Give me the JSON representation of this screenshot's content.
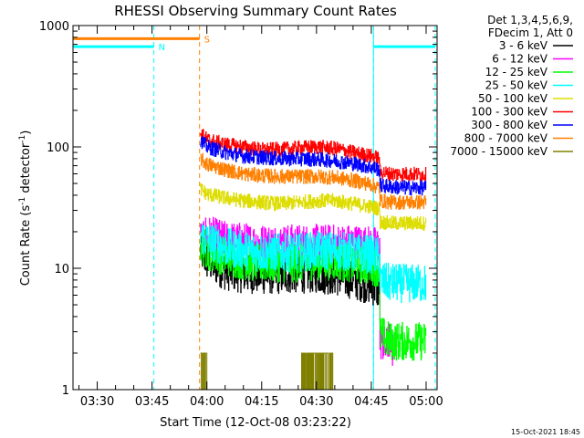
{
  "chart_data": {
    "type": "line",
    "title": "RHESSI Observing Summary Count Rates",
    "xlabel": "Start Time (12-Oct-08 03:23:22)",
    "ylabel": "Count Rate (s⁻¹ detector⁻¹)",
    "ylabel_parts": {
      "a": "Count Rate (s",
      "b": "-1",
      "c": " detector",
      "d": "-1",
      "e": ")"
    },
    "yscale": "log",
    "ylim": [
      1,
      1000
    ],
    "xlim_minutes": [
      203.37,
      303.0
    ],
    "x_ticks": [
      {
        "label": "03:30",
        "m": 210
      },
      {
        "label": "03:45",
        "m": 225
      },
      {
        "label": "04:00",
        "m": 240
      },
      {
        "label": "04:15",
        "m": 255
      },
      {
        "label": "04:30",
        "m": 270
      },
      {
        "label": "04:45",
        "m": 285
      },
      {
        "label": "05:00",
        "m": 300
      }
    ],
    "y_ticks": [
      {
        "label": "1",
        "v": 1
      },
      {
        "label": "10",
        "v": 10
      },
      {
        "label": "100",
        "v": 100
      },
      {
        "label": "1000",
        "v": 1000
      }
    ],
    "legend_header": [
      "Det 1,3,4,5,6,9,",
      "FDecim 1, Att 0"
    ],
    "legend_position": "right",
    "series": [
      {
        "name": "3 - 6 keV",
        "color": "#000000",
        "x": [
          238.2,
          240,
          245,
          250,
          255,
          260,
          265,
          270,
          275,
          280,
          285,
          287.3
        ],
        "y": [
          14,
          11.5,
          9.5,
          9,
          8.8,
          8.8,
          9,
          9,
          8.6,
          8,
          7.2,
          6.5
        ]
      },
      {
        "name": "6 - 12 keV",
        "color": "#ff00ff",
        "x": [
          238.2,
          240,
          245,
          250,
          255,
          260,
          265,
          270,
          275,
          280,
          285,
          287.3,
          288,
          289,
          290,
          291
        ],
        "y": [
          21,
          19,
          17,
          16.5,
          16,
          16,
          16,
          16,
          16,
          16,
          15.5,
          15,
          2.5,
          2.2,
          2.6,
          2.0
        ]
      },
      {
        "name": "12 - 25 keV",
        "color": "#00ff00",
        "x": [
          238.2,
          240,
          245,
          250,
          255,
          260,
          265,
          270,
          275,
          280,
          285,
          287.3,
          287.8,
          290,
          295,
          300
        ],
        "y": [
          16,
          14,
          12.5,
          11.5,
          11,
          11,
          11,
          11.5,
          11.5,
          11,
          10.5,
          10,
          2.8,
          2.5,
          2.5,
          2.5
        ]
      },
      {
        "name": "25 - 50 keV",
        "color": "#00ffff",
        "x": [
          238.2,
          240,
          245,
          250,
          255,
          260,
          265,
          270,
          275,
          280,
          285,
          287.3,
          287.8,
          290,
          295,
          300
        ],
        "y": [
          19,
          17,
          15,
          14,
          13.5,
          13.5,
          13.5,
          14,
          14,
          13.5,
          13,
          12.5,
          7.8,
          7.6,
          7.5,
          7.5
        ]
      },
      {
        "name": "50 - 100 keV",
        "color": "#dddd00",
        "x": [
          238.2,
          240,
          245,
          250,
          255,
          260,
          265,
          270,
          275,
          280,
          285,
          287.3,
          287.8,
          290,
          295,
          300
        ],
        "y": [
          45,
          41,
          38,
          36,
          35,
          34,
          35,
          36,
          36,
          34,
          32,
          31,
          24,
          23.5,
          23.5,
          23.5
        ]
      },
      {
        "name": "100 - 300 keV",
        "color": "#ff0000",
        "x": [
          238.2,
          240,
          245,
          250,
          255,
          260,
          265,
          270,
          275,
          280,
          285,
          287.3,
          287.8,
          290,
          295,
          300
        ],
        "y": [
          130,
          115,
          105,
          100,
          95,
          95,
          98,
          100,
          97,
          90,
          84,
          80,
          62,
          60,
          60,
          59
        ]
      },
      {
        "name": "300 - 800 keV",
        "color": "#0000ff",
        "x": [
          238.2,
          240,
          245,
          250,
          255,
          260,
          265,
          270,
          275,
          280,
          285,
          287.3,
          287.8,
          290,
          295,
          300
        ],
        "y": [
          115,
          100,
          90,
          84,
          82,
          80,
          80,
          79,
          77,
          73,
          68,
          65,
          48,
          47,
          46,
          46
        ]
      },
      {
        "name": "800 - 7000 keV",
        "color": "#ff8000",
        "x": [
          238.2,
          240,
          245,
          250,
          255,
          260,
          265,
          270,
          275,
          280,
          285,
          287.3,
          287.8,
          290,
          295,
          300
        ],
        "y": [
          80,
          72,
          65,
          60,
          58,
          57,
          57,
          57,
          56,
          53,
          49,
          46,
          36,
          35,
          35,
          35
        ]
      },
      {
        "name": "7000 - 15000 keV",
        "color": "#808000",
        "x": [
          238.2,
          239.5,
          240.5,
          265,
          266,
          274,
          275,
          287.3
        ],
        "y": [
          2,
          2,
          1,
          1,
          2,
          2,
          1,
          1
        ]
      }
    ],
    "flags": [
      {
        "label": "N",
        "color": "#00ffff",
        "y": 670,
        "segments": [
          [
            203.37,
            225.5
          ],
          [
            285.6,
            302.5
          ]
        ],
        "boundaries": [
          225.5,
          285.6,
          302.5
        ]
      },
      {
        "label": "S",
        "color": "#ff8000",
        "y": 780,
        "segments": [
          [
            203.37,
            238.0
          ]
        ],
        "boundaries": [
          238.0
        ]
      }
    ],
    "footer_date": "15-Oct-2021 18:45"
  }
}
